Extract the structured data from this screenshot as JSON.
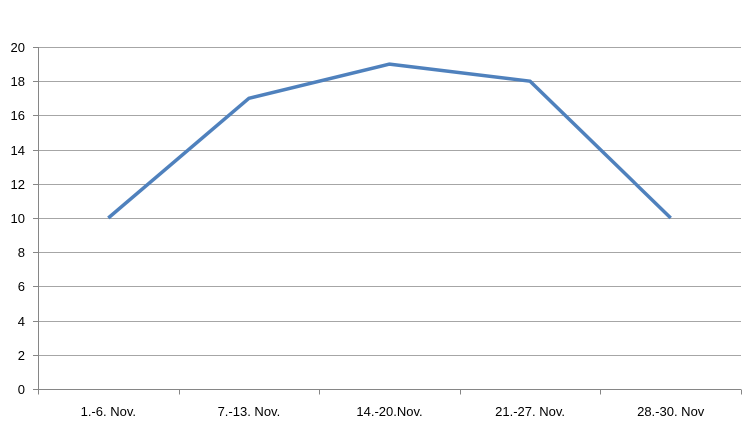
{
  "chart_data": {
    "type": "line",
    "categories": [
      "1.-6. Nov.",
      "7.-13. Nov.",
      "14.-20.Nov.",
      "21.-27. Nov.",
      "28.-30. Nov"
    ],
    "series": [
      {
        "values": [
          10,
          17,
          19,
          18,
          10
        ]
      }
    ],
    "ylim": [
      0,
      20
    ],
    "yticks": [
      0,
      2,
      4,
      6,
      8,
      10,
      12,
      14,
      16,
      18,
      20
    ],
    "grid": true,
    "legend": "none",
    "colors": {
      "line": "#4F81BD",
      "grid": "#A6A6A6",
      "axis": "#868686"
    }
  }
}
